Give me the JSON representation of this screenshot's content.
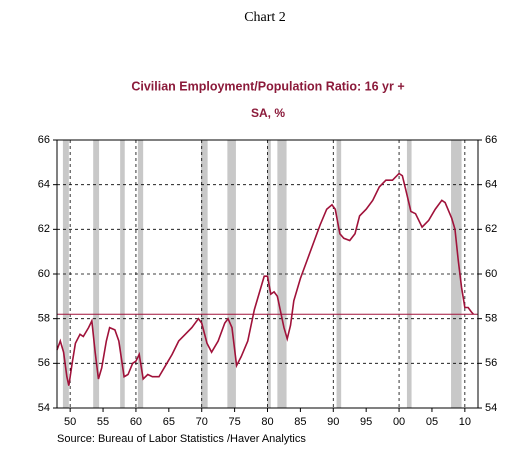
{
  "header": "Chart 2",
  "chart_data": {
    "type": "line",
    "title": "Civilian Employment/Population Ratio: 16 yr +",
    "subtitle": "SA, %",
    "source": "Source:  Bureau of Labor Statistics /Haver Analytics",
    "xlim": [
      1948,
      2012
    ],
    "xticks": [
      {
        "value": 1950,
        "label": "50"
      },
      {
        "value": 1955,
        "label": "55"
      },
      {
        "value": 1960,
        "label": "60"
      },
      {
        "value": 1965,
        "label": "65"
      },
      {
        "value": 1970,
        "label": "70"
      },
      {
        "value": 1975,
        "label": "75"
      },
      {
        "value": 1980,
        "label": "80"
      },
      {
        "value": 1985,
        "label": "85"
      },
      {
        "value": 1990,
        "label": "90"
      },
      {
        "value": 1995,
        "label": "95"
      },
      {
        "value": 2000,
        "label": "00"
      },
      {
        "value": 2005,
        "label": "05"
      },
      {
        "value": 2010,
        "label": "10"
      }
    ],
    "xgrid": [
      1950,
      1960,
      1970,
      1980,
      1990,
      2000,
      2010
    ],
    "ylim": [
      54,
      66
    ],
    "yticks": [
      54,
      56,
      58,
      60,
      62,
      64,
      66
    ],
    "grid": true,
    "reference_line": 58.2,
    "reference_color": "#a0123a",
    "shaded_periods": [
      [
        1948.9,
        1949.8
      ],
      [
        1953.5,
        1954.4
      ],
      [
        1957.6,
        1958.3
      ],
      [
        1960.3,
        1961.1
      ],
      [
        1969.9,
        1970.9
      ],
      [
        1973.9,
        1975.2
      ],
      [
        1980.0,
        1980.5
      ],
      [
        1981.5,
        1982.9
      ],
      [
        1990.5,
        1991.2
      ],
      [
        2001.2,
        2001.9
      ],
      [
        2007.9,
        2009.5
      ]
    ],
    "shade_color": "#c8c8c8",
    "series": [
      {
        "color": "#a0123a",
        "x": [
          1948.0,
          1948.5,
          1949.0,
          1949.5,
          1949.8,
          1950.3,
          1950.8,
          1951.5,
          1952.0,
          1952.8,
          1953.3,
          1953.8,
          1954.3,
          1954.8,
          1955.5,
          1956.0,
          1956.8,
          1957.4,
          1958.2,
          1958.8,
          1959.5,
          1960.0,
          1960.5,
          1961.1,
          1961.8,
          1962.5,
          1963.5,
          1964.5,
          1965.5,
          1966.5,
          1967.5,
          1968.5,
          1969.5,
          1970.0,
          1970.8,
          1971.5,
          1972.5,
          1973.5,
          1974.0,
          1974.6,
          1975.3,
          1976.0,
          1977.0,
          1978.0,
          1979.0,
          1979.5,
          1980.0,
          1980.5,
          1981.0,
          1981.5,
          1982.5,
          1983.0,
          1983.5,
          1984.0,
          1985.0,
          1986.0,
          1987.0,
          1988.0,
          1989.0,
          1989.8,
          1990.3,
          1991.0,
          1991.6,
          1992.5,
          1993.3,
          1994.0,
          1995.0,
          1996.0,
          1997.0,
          1998.0,
          1999.0,
          2000.0,
          2000.5,
          2001.0,
          2001.8,
          2002.5,
          2003.5,
          2004.5,
          2005.5,
          2006.5,
          2007.0,
          2008.0,
          2008.5,
          2009.0,
          2009.5,
          2010.0,
          2010.5,
          2011.0,
          2011.3
        ],
        "values": [
          56.6,
          57.0,
          56.5,
          55.4,
          55.0,
          56.0,
          56.9,
          57.3,
          57.2,
          57.6,
          57.9,
          56.5,
          55.3,
          55.8,
          57.0,
          57.6,
          57.5,
          57.0,
          55.4,
          55.5,
          56.0,
          56.1,
          56.4,
          55.3,
          55.5,
          55.4,
          55.4,
          55.9,
          56.4,
          57.0,
          57.3,
          57.6,
          58.0,
          57.8,
          56.9,
          56.5,
          57.0,
          57.8,
          58.0,
          57.6,
          55.9,
          56.3,
          57.0,
          58.4,
          59.4,
          59.9,
          59.9,
          59.1,
          59.2,
          59.0,
          57.6,
          57.1,
          57.7,
          58.8,
          59.8,
          60.6,
          61.4,
          62.2,
          62.9,
          63.1,
          62.9,
          61.8,
          61.6,
          61.5,
          61.8,
          62.6,
          62.9,
          63.3,
          63.9,
          64.2,
          64.2,
          64.5,
          64.4,
          63.8,
          62.8,
          62.7,
          62.1,
          62.4,
          62.9,
          63.3,
          63.2,
          62.5,
          62.0,
          60.6,
          59.4,
          58.5,
          58.5,
          58.3,
          58.2
        ]
      }
    ]
  }
}
